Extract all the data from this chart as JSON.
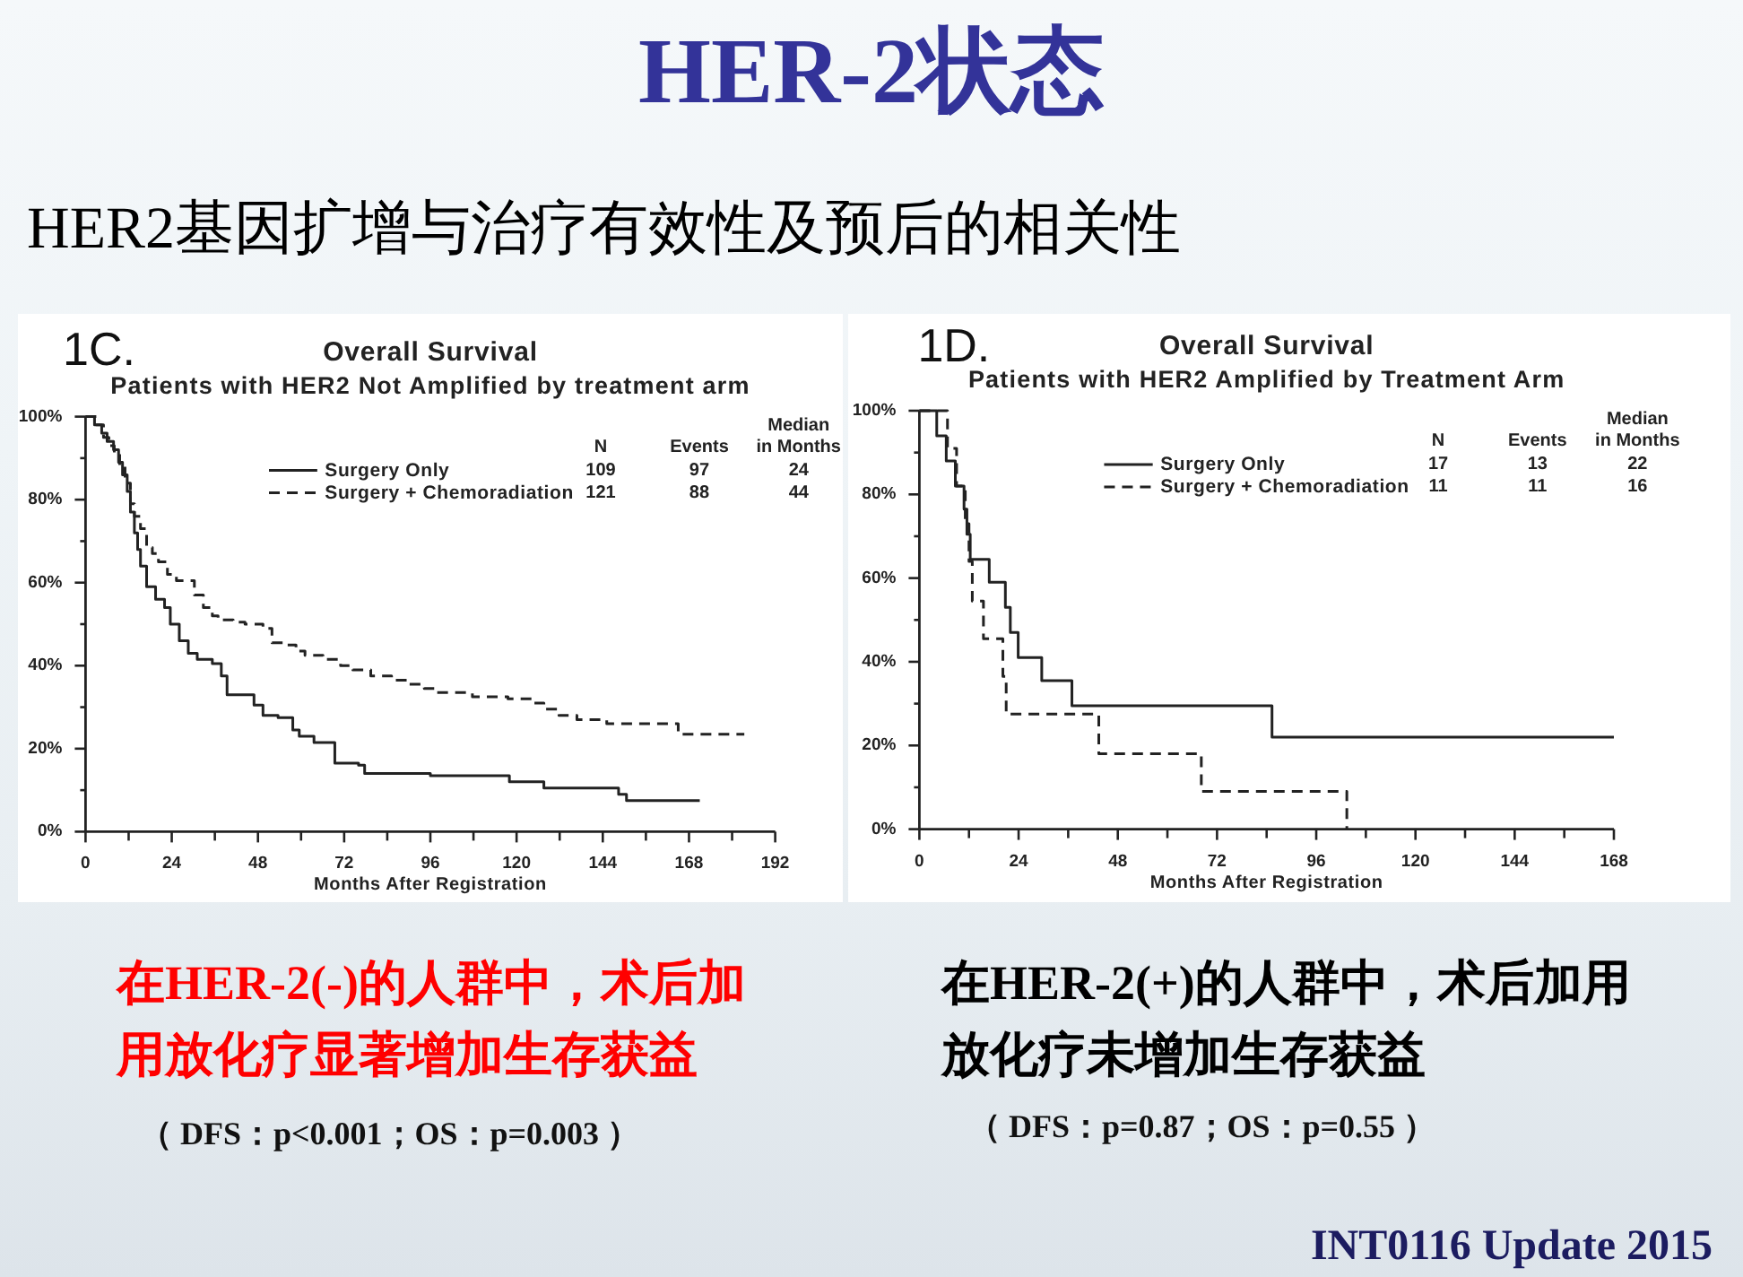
{
  "chart_data": [
    {
      "type": "other",
      "title": "HER-2状态",
      "subtitle": "HER2基因扩增与治疗有效性及预后的相关性",
      "annotations": [
        "INT0116 Update 2015"
      ]
    },
    {
      "type": "step",
      "title": "Overall Survival",
      "subtitle": "Patients with HER2 Not Amplified by treatment arm",
      "xlabel": "Months After Registration",
      "xlim": [
        0,
        192
      ],
      "xticks": [
        0,
        {
          "value": 12,
          "label": null
        },
        24,
        {
          "value": 36,
          "label": null
        },
        48,
        {
          "value": 60,
          "label": null
        },
        72,
        {
          "value": 84,
          "label": null
        },
        96,
        {
          "value": 108,
          "label": null
        },
        120,
        {
          "value": 132,
          "label": null
        },
        144,
        {
          "value": 156,
          "label": null
        },
        168,
        {
          "value": 180,
          "label": null
        },
        192
      ],
      "ylim": [
        0,
        100
      ],
      "yticks": [
        {
          "value": 0,
          "label": "0%"
        },
        {
          "value": 10,
          "label": null
        },
        {
          "value": 20,
          "label": "20%"
        },
        {
          "value": 30,
          "label": null
        },
        {
          "value": 40,
          "label": "40%"
        },
        {
          "value": 50,
          "label": null
        },
        {
          "value": 60,
          "label": "60%"
        },
        {
          "value": 70,
          "label": null
        },
        {
          "value": 80,
          "label": "80%"
        },
        {
          "value": 90,
          "label": null
        },
        {
          "value": 100,
          "label": "100%"
        }
      ],
      "legend": "top right",
      "series": [
        {
          "name": "Surgery Only",
          "color": "#222222",
          "line_style": "solid",
          "x": [
            0,
            2.5,
            4.5,
            6,
            7.8,
            9.2,
            10.3,
            11.6,
            12.5,
            13.6,
            14.5,
            15.3,
            17,
            19.5,
            22,
            23.6,
            26.1,
            28.6,
            31.1,
            35.3,
            37.8,
            39.4,
            46.9,
            49.4,
            53.6,
            57.7,
            59.5,
            63.6,
            69.4,
            76,
            77.7,
            96,
            118,
            127.6,
            148.4,
            150.6,
            171
          ],
          "values": [
            100,
            98,
            96,
            94,
            92,
            89,
            86,
            82,
            77,
            72,
            68,
            64,
            59,
            56,
            54,
            50,
            46,
            43,
            41.5,
            40.5,
            37.5,
            33,
            30.5,
            28,
            27.5,
            24.5,
            23,
            21.5,
            16.5,
            16,
            14,
            13.5,
            12,
            10.5,
            9,
            7.5,
            7.5
          ]
        },
        {
          "name": "Surgery + Chemoradiation",
          "color": "#222222",
          "line_style": "dashed",
          "x": [
            0,
            3,
            5,
            6.5,
            8,
            9.5,
            11,
            12.5,
            13.6,
            15.3,
            17,
            18.6,
            20.3,
            22.8,
            25.3,
            30.3,
            32.8,
            35.3,
            36.9,
            41.1,
            44.4,
            49.4,
            51.9,
            55.2,
            58.6,
            61.1,
            66.1,
            71,
            74.4,
            79.4,
            85.2,
            89.4,
            94.3,
            97.7,
            107.7,
            117.6,
            124.3,
            127.6,
            131.8,
            136.8,
            145.1,
            165,
            183.4
          ],
          "values": [
            100,
            98,
            95,
            93,
            91,
            88,
            84,
            79,
            76,
            73,
            68.5,
            67,
            65,
            62,
            60.5,
            57,
            54,
            52,
            51,
            50.5,
            50,
            49,
            45.5,
            45,
            43.5,
            42.5,
            41.5,
            40,
            39,
            37.5,
            36.5,
            35.5,
            34.5,
            33.5,
            32.5,
            32,
            31,
            29.5,
            28,
            27,
            26,
            23.5,
            23.5
          ]
        }
      ],
      "annotations": [
        "1C.",
        "N",
        "Events",
        "Median in Months",
        "109",
        "97",
        "24",
        "121",
        "88",
        "44",
        "在HER-2(-)的人群中，术后加用放化疗显著增加生存获益",
        "（ DFS：p<0.001；OS：p=0.003 ）"
      ]
    },
    {
      "type": "step",
      "title": "Overall Survival",
      "subtitle": "Patients with HER2 Amplified by Treatment Arm",
      "xlabel": "Months After Registration",
      "xlim": [
        0,
        168
      ],
      "xticks": [
        0,
        {
          "value": 12,
          "label": null
        },
        24,
        {
          "value": 36,
          "label": null
        },
        48,
        {
          "value": 60,
          "label": null
        },
        72,
        {
          "value": 84,
          "label": null
        },
        96,
        {
          "value": 108,
          "label": null
        },
        120,
        {
          "value": 132,
          "label": null
        },
        144,
        {
          "value": 156,
          "label": null
        },
        168
      ],
      "ylim": [
        0,
        100
      ],
      "yticks": [
        {
          "value": 0,
          "label": "0%"
        },
        {
          "value": 10,
          "label": null
        },
        {
          "value": 20,
          "label": "20%"
        },
        {
          "value": 30,
          "label": null
        },
        {
          "value": 40,
          "label": "40%"
        },
        {
          "value": 50,
          "label": null
        },
        {
          "value": 60,
          "label": "60%"
        },
        {
          "value": 70,
          "label": null
        },
        {
          "value": 80,
          "label": "80%"
        },
        {
          "value": 90,
          "label": null
        },
        {
          "value": 100,
          "label": "100%"
        }
      ],
      "legend": "top right",
      "series": [
        {
          "name": "Surgery Only",
          "color": "#222222",
          "line_style": "solid",
          "x": [
            0,
            4.2,
            6.5,
            8.7,
            10.8,
            11.5,
            12.3,
            16.9,
            20.8,
            22,
            23.9,
            29.6,
            36.9,
            85.3,
            168
          ],
          "values": [
            100,
            94,
            88,
            82,
            76.5,
            70.5,
            64.5,
            59,
            53,
            47,
            41,
            35.5,
            29.5,
            22,
            22
          ]
        },
        {
          "name": "Surgery + Chemoradiation",
          "color": "#222222",
          "line_style": "dashed",
          "x": [
            0,
            6.8,
            9,
            11.1,
            12,
            12.8,
            15.5,
            20.2,
            21,
            43.4,
            68.2,
            103.4
          ],
          "values": [
            100,
            91,
            82,
            73,
            64,
            54.5,
            45.5,
            36.5,
            27.5,
            18,
            9,
            0
          ]
        }
      ],
      "annotations": [
        "1D.",
        "N",
        "Events",
        "Median in Months",
        "17",
        "13",
        "22",
        "11",
        "11",
        "16",
        "在HER-2(+)的人群中，术后加用放化疗未增加生存获益",
        "（ DFS：p=0.87；OS：p=0.55 ）"
      ]
    }
  ]
}
